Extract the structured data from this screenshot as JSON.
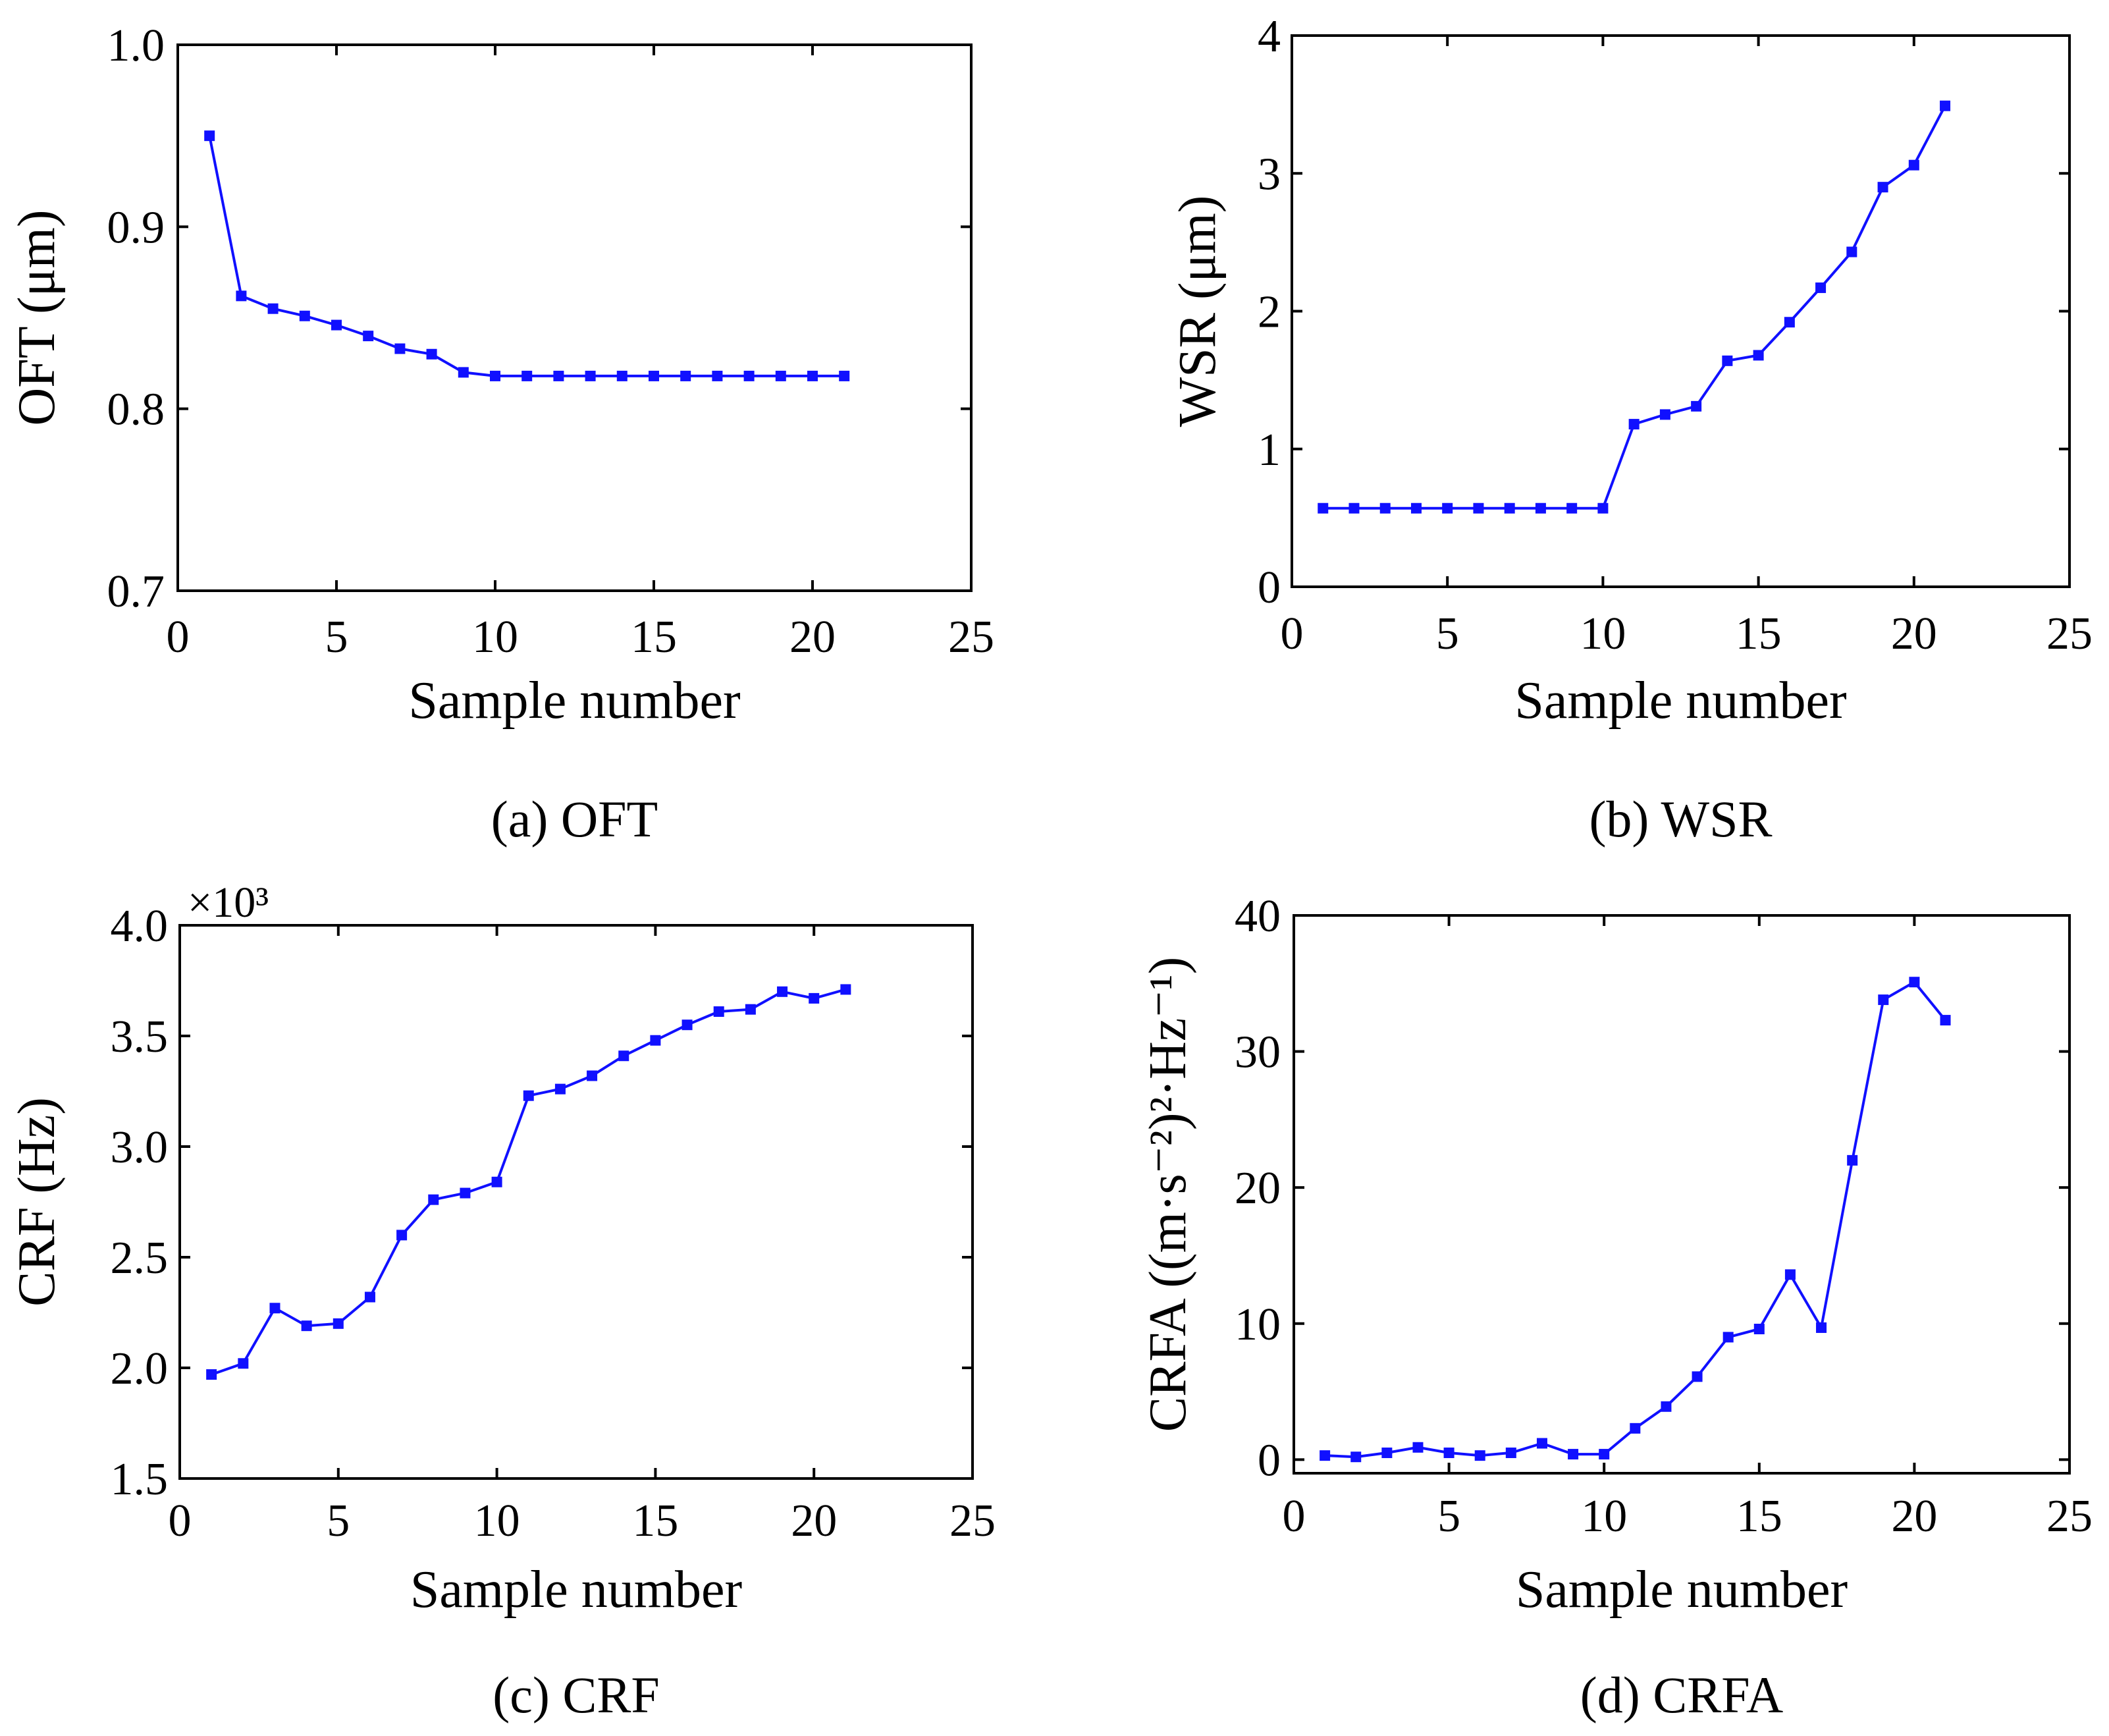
{
  "chart_data": [
    {
      "type": "line",
      "title": "",
      "caption": "(a) OFT",
      "xlabel": "Sample number",
      "ylabel": "OFT (μm)",
      "xlim": [
        0,
        25
      ],
      "ylim": [
        0.7,
        1.0
      ],
      "xticks": [
        0,
        5,
        10,
        15,
        20,
        25
      ],
      "yticks": [
        0.7,
        0.8,
        0.9,
        1.0
      ],
      "xtick_labels": [
        "0",
        "5",
        "10",
        "15",
        "20",
        "25"
      ],
      "ytick_labels": [
        "0.7",
        "0.8",
        "0.9",
        "1.0"
      ],
      "grid": false,
      "color": "#1010ff",
      "series": [
        {
          "name": "OFT",
          "x": [
            1,
            2,
            3,
            4,
            5,
            6,
            7,
            8,
            9,
            10,
            11,
            12,
            13,
            14,
            15,
            16,
            17,
            18,
            19,
            20,
            21
          ],
          "values": [
            0.95,
            0.862,
            0.855,
            0.851,
            0.846,
            0.84,
            0.833,
            0.83,
            0.82,
            0.818,
            0.818,
            0.818,
            0.818,
            0.818,
            0.818,
            0.818,
            0.818,
            0.818,
            0.818,
            0.818,
            0.818
          ]
        }
      ]
    },
    {
      "type": "line",
      "title": "",
      "caption": "(b) WSR",
      "xlabel": "Sample number",
      "ylabel": "WSR (μm)",
      "xlim": [
        0,
        25
      ],
      "ylim": [
        0,
        4
      ],
      "xticks": [
        0,
        5,
        10,
        15,
        20,
        25
      ],
      "yticks": [
        0,
        1,
        2,
        3,
        4
      ],
      "xtick_labels": [
        "0",
        "5",
        "10",
        "15",
        "20",
        "25"
      ],
      "ytick_labels": [
        "0",
        "1",
        "2",
        "3",
        "4"
      ],
      "grid": false,
      "color": "#1010ff",
      "series": [
        {
          "name": "WSR",
          "x": [
            1,
            2,
            3,
            4,
            5,
            6,
            7,
            8,
            9,
            10,
            11,
            12,
            13,
            14,
            15,
            16,
            17,
            18,
            19,
            20,
            21
          ],
          "values": [
            0.57,
            0.57,
            0.57,
            0.57,
            0.57,
            0.57,
            0.57,
            0.57,
            0.57,
            0.57,
            1.18,
            1.25,
            1.31,
            1.64,
            1.68,
            1.92,
            2.17,
            2.43,
            2.9,
            3.06,
            3.49
          ]
        }
      ]
    },
    {
      "type": "line",
      "title": "",
      "caption": "(c) CRF",
      "xlabel": "Sample number",
      "ylabel": "CRF (Hz)",
      "y_multiplier": "×10³",
      "xlim": [
        0,
        25
      ],
      "ylim": [
        1.5,
        4.0
      ],
      "xticks": [
        0,
        5,
        10,
        15,
        20,
        25
      ],
      "yticks": [
        1.5,
        2.0,
        2.5,
        3.0,
        3.5,
        4.0
      ],
      "xtick_labels": [
        "0",
        "5",
        "10",
        "15",
        "20",
        "25"
      ],
      "ytick_labels": [
        "1.5",
        "2.0",
        "2.5",
        "3.0",
        "3.5",
        "4.0"
      ],
      "grid": false,
      "color": "#1010ff",
      "series": [
        {
          "name": "CRF",
          "x": [
            1,
            2,
            3,
            4,
            5,
            6,
            7,
            8,
            9,
            10,
            11,
            12,
            13,
            14,
            15,
            16,
            17,
            18,
            19,
            20,
            21
          ],
          "values": [
            1.97,
            2.02,
            2.27,
            2.19,
            2.2,
            2.32,
            2.6,
            2.76,
            2.79,
            2.84,
            3.23,
            3.26,
            3.32,
            3.41,
            3.48,
            3.55,
            3.61,
            3.62,
            3.7,
            3.67,
            3.71
          ]
        }
      ]
    },
    {
      "type": "line",
      "title": "",
      "caption": "(d) CRFA",
      "xlabel": "Sample number",
      "ylabel": "CRFA ((m·s⁻²)²·Hz⁻¹)",
      "xlim": [
        0,
        25
      ],
      "ylim": [
        -1,
        40
      ],
      "xticks": [
        0,
        5,
        10,
        15,
        20,
        25
      ],
      "yticks": [
        0,
        10,
        20,
        30,
        40
      ],
      "xtick_labels": [
        "0",
        "5",
        "10",
        "15",
        "20",
        "25"
      ],
      "ytick_labels": [
        "0",
        "10",
        "20",
        "30",
        "40"
      ],
      "grid": false,
      "color": "#1010ff",
      "series": [
        {
          "name": "CRFA",
          "x": [
            1,
            2,
            3,
            4,
            5,
            6,
            7,
            8,
            9,
            10,
            11,
            12,
            13,
            14,
            15,
            16,
            17,
            18,
            19,
            20,
            21
          ],
          "values": [
            0.3,
            0.2,
            0.5,
            0.9,
            0.5,
            0.3,
            0.5,
            1.2,
            0.4,
            0.4,
            2.3,
            3.9,
            6.1,
            9.0,
            9.6,
            13.6,
            9.7,
            22.0,
            33.8,
            35.1,
            32.3
          ]
        }
      ]
    }
  ]
}
